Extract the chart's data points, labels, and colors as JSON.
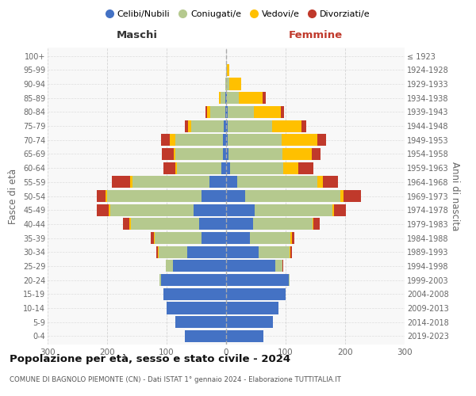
{
  "age_groups": [
    "0-4",
    "5-9",
    "10-14",
    "15-19",
    "20-24",
    "25-29",
    "30-34",
    "35-39",
    "40-44",
    "45-49",
    "50-54",
    "55-59",
    "60-64",
    "65-69",
    "70-74",
    "75-79",
    "80-84",
    "85-89",
    "90-94",
    "95-99",
    "100+"
  ],
  "birth_years": [
    "2019-2023",
    "2014-2018",
    "2009-2013",
    "2004-2008",
    "1999-2003",
    "1994-1998",
    "1989-1993",
    "1984-1988",
    "1979-1983",
    "1974-1978",
    "1969-1973",
    "1964-1968",
    "1959-1963",
    "1954-1958",
    "1949-1953",
    "1944-1948",
    "1939-1943",
    "1934-1938",
    "1929-1933",
    "1924-1928",
    "≤ 1923"
  ],
  "colors": {
    "celibi": "#4472c4",
    "coniugati": "#b5c98e",
    "vedovi": "#ffc000",
    "divorziati": "#c0392b"
  },
  "maschi": {
    "celibi": [
      70,
      85,
      100,
      105,
      110,
      90,
      65,
      42,
      45,
      55,
      42,
      28,
      8,
      5,
      5,
      4,
      2,
      1,
      0,
      0,
      0
    ],
    "coniugati": [
      0,
      0,
      0,
      0,
      2,
      12,
      48,
      78,
      115,
      140,
      158,
      130,
      75,
      80,
      80,
      55,
      25,
      8,
      2,
      0,
      0
    ],
    "vedovi": [
      0,
      0,
      0,
      0,
      0,
      0,
      2,
      2,
      3,
      3,
      3,
      4,
      3,
      3,
      10,
      5,
      5,
      3,
      0,
      0,
      0
    ],
    "divorziati": [
      0,
      0,
      0,
      0,
      0,
      0,
      3,
      5,
      10,
      20,
      15,
      30,
      20,
      20,
      15,
      5,
      3,
      0,
      0,
      0,
      0
    ]
  },
  "femmine": {
    "nubili": [
      62,
      78,
      88,
      100,
      105,
      82,
      55,
      40,
      45,
      48,
      32,
      18,
      6,
      4,
      3,
      2,
      2,
      1,
      0,
      0,
      0
    ],
    "coniugate": [
      0,
      0,
      0,
      0,
      2,
      12,
      52,
      68,
      100,
      130,
      160,
      135,
      90,
      90,
      90,
      75,
      45,
      20,
      5,
      1,
      0
    ],
    "vedove": [
      0,
      0,
      0,
      0,
      0,
      0,
      1,
      2,
      2,
      3,
      5,
      10,
      25,
      50,
      60,
      50,
      45,
      40,
      20,
      4,
      0
    ],
    "divorziate": [
      0,
      0,
      0,
      0,
      0,
      2,
      2,
      5,
      10,
      20,
      30,
      25,
      25,
      15,
      15,
      8,
      5,
      5,
      0,
      0,
      0
    ]
  },
  "title": "Popolazione per età, sesso e stato civile - 2024",
  "subtitle": "COMUNE DI BAGNOLO PIEMONTE (CN) - Dati ISTAT 1° gennaio 2024 - Elaborazione TUTTITALIA.IT",
  "xlim": 300,
  "xlabel_left": "Maschi",
  "xlabel_right": "Femmine",
  "ylabel_left": "Fasce di età",
  "ylabel_right": "Anni di nascita",
  "legend_labels": [
    "Celibi/Nubili",
    "Coniugati/e",
    "Vedovi/e",
    "Divorziati/e"
  ],
  "bar_height": 0.85,
  "gridcolor": "#cccccc"
}
